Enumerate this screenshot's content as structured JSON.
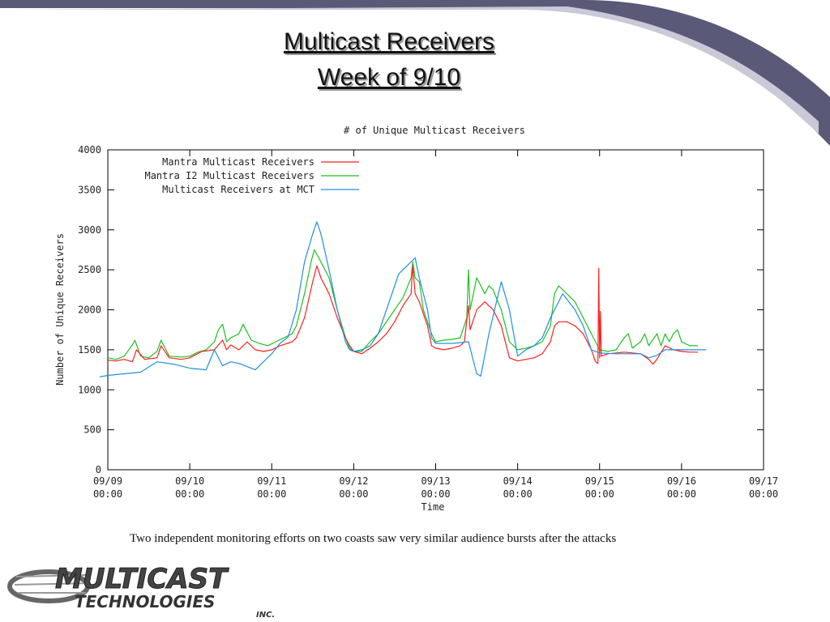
{
  "slide": {
    "title_line1": "Multicast Receivers",
    "title_line2": "Week of 9/10",
    "caption": "Two independent monitoring efforts on two coasts saw very similar audience bursts after the attacks"
  },
  "logo": {
    "word1": "MULTICAST",
    "word2": "TECHNOLOGIES",
    "word3": "INC."
  },
  "colors": {
    "series_red": "#ff2020",
    "series_green": "#20c020",
    "series_blue": "#2090e0",
    "deco_band": "#5a5a78"
  },
  "chart_data": {
    "type": "line",
    "title": "# of Unique Multicast Receivers",
    "xlabel": "Time",
    "ylabel": "Number of Unique Receivers",
    "ylim": [
      0,
      4000
    ],
    "yticks": [
      0,
      500,
      1000,
      1500,
      2000,
      2500,
      3000,
      3500,
      4000
    ],
    "xlim": [
      0,
      8
    ],
    "x_unit": "days since 09/09 00:00",
    "xticks": [
      {
        "x": 0,
        "line1": "09/09",
        "line2": "00:00"
      },
      {
        "x": 1,
        "line1": "09/10",
        "line2": "00:00"
      },
      {
        "x": 2,
        "line1": "09/11",
        "line2": "00:00"
      },
      {
        "x": 3,
        "line1": "09/12",
        "line2": "00:00"
      },
      {
        "x": 4,
        "line1": "09/13",
        "line2": "00:00"
      },
      {
        "x": 5,
        "line1": "09/14",
        "line2": "00:00"
      },
      {
        "x": 6,
        "line1": "09/15",
        "line2": "00:00"
      },
      {
        "x": 7,
        "line1": "09/16",
        "line2": "00:00"
      },
      {
        "x": 8,
        "line1": "09/17",
        "line2": "00:00"
      }
    ],
    "legend_position": "top-left",
    "grid": false,
    "series": [
      {
        "name": "Mantra Multicast Receivers",
        "color": "#ff2020",
        "points": [
          [
            0.0,
            1370
          ],
          [
            0.1,
            1360
          ],
          [
            0.2,
            1380
          ],
          [
            0.3,
            1350
          ],
          [
            0.35,
            1500
          ],
          [
            0.45,
            1380
          ],
          [
            0.6,
            1400
          ],
          [
            0.65,
            1550
          ],
          [
            0.75,
            1400
          ],
          [
            0.9,
            1380
          ],
          [
            1.0,
            1400
          ],
          [
            1.15,
            1480
          ],
          [
            1.3,
            1500
          ],
          [
            1.4,
            1620
          ],
          [
            1.45,
            1500
          ],
          [
            1.5,
            1560
          ],
          [
            1.6,
            1500
          ],
          [
            1.7,
            1600
          ],
          [
            1.8,
            1500
          ],
          [
            1.9,
            1480
          ],
          [
            2.0,
            1500
          ],
          [
            2.1,
            1550
          ],
          [
            2.25,
            1600
          ],
          [
            2.3,
            1650
          ],
          [
            2.4,
            1900
          ],
          [
            2.5,
            2350
          ],
          [
            2.55,
            2550
          ],
          [
            2.6,
            2400
          ],
          [
            2.7,
            2200
          ],
          [
            2.8,
            1900
          ],
          [
            2.9,
            1650
          ],
          [
            2.95,
            1550
          ],
          [
            3.0,
            1480
          ],
          [
            3.1,
            1450
          ],
          [
            3.2,
            1520
          ],
          [
            3.3,
            1600
          ],
          [
            3.4,
            1700
          ],
          [
            3.5,
            1850
          ],
          [
            3.6,
            2050
          ],
          [
            3.7,
            2200
          ],
          [
            3.72,
            2550
          ],
          [
            3.75,
            2200
          ],
          [
            3.8,
            2100
          ],
          [
            3.9,
            1800
          ],
          [
            3.95,
            1550
          ],
          [
            4.0,
            1520
          ],
          [
            4.1,
            1500
          ],
          [
            4.2,
            1520
          ],
          [
            4.3,
            1550
          ],
          [
            4.35,
            1600
          ],
          [
            4.4,
            2050
          ],
          [
            4.42,
            1750
          ],
          [
            4.5,
            2000
          ],
          [
            4.6,
            2100
          ],
          [
            4.7,
            2000
          ],
          [
            4.8,
            1800
          ],
          [
            4.9,
            1400
          ],
          [
            5.0,
            1360
          ],
          [
            5.1,
            1380
          ],
          [
            5.2,
            1400
          ],
          [
            5.3,
            1450
          ],
          [
            5.4,
            1600
          ],
          [
            5.45,
            1800
          ],
          [
            5.5,
            1850
          ],
          [
            5.6,
            1850
          ],
          [
            5.7,
            1800
          ],
          [
            5.8,
            1700
          ],
          [
            5.9,
            1500
          ],
          [
            5.95,
            1350
          ],
          [
            5.98,
            1330
          ],
          [
            5.99,
            2520
          ],
          [
            6.0,
            1400
          ],
          [
            6.01,
            1980
          ],
          [
            6.02,
            1420
          ],
          [
            6.1,
            1450
          ],
          [
            6.2,
            1460
          ],
          [
            6.3,
            1470
          ],
          [
            6.4,
            1460
          ],
          [
            6.5,
            1450
          ],
          [
            6.6,
            1380
          ],
          [
            6.65,
            1320
          ],
          [
            6.7,
            1380
          ],
          [
            6.8,
            1550
          ],
          [
            6.9,
            1500
          ],
          [
            7.0,
            1480
          ],
          [
            7.1,
            1470
          ],
          [
            7.2,
            1470
          ]
        ]
      },
      {
        "name": "Mantra I2 Multicast Receivers",
        "color": "#20c020",
        "points": [
          [
            0.0,
            1400
          ],
          [
            0.1,
            1380
          ],
          [
            0.2,
            1420
          ],
          [
            0.3,
            1560
          ],
          [
            0.33,
            1620
          ],
          [
            0.4,
            1420
          ],
          [
            0.5,
            1400
          ],
          [
            0.6,
            1480
          ],
          [
            0.65,
            1620
          ],
          [
            0.75,
            1420
          ],
          [
            0.9,
            1410
          ],
          [
            1.0,
            1420
          ],
          [
            1.1,
            1470
          ],
          [
            1.2,
            1500
          ],
          [
            1.3,
            1600
          ],
          [
            1.35,
            1750
          ],
          [
            1.4,
            1820
          ],
          [
            1.45,
            1600
          ],
          [
            1.5,
            1650
          ],
          [
            1.6,
            1700
          ],
          [
            1.65,
            1820
          ],
          [
            1.75,
            1620
          ],
          [
            1.85,
            1580
          ],
          [
            1.95,
            1550
          ],
          [
            2.05,
            1600
          ],
          [
            2.15,
            1650
          ],
          [
            2.25,
            1700
          ],
          [
            2.3,
            1800
          ],
          [
            2.4,
            2200
          ],
          [
            2.48,
            2600
          ],
          [
            2.52,
            2750
          ],
          [
            2.6,
            2600
          ],
          [
            2.7,
            2400
          ],
          [
            2.8,
            2000
          ],
          [
            2.9,
            1650
          ],
          [
            2.95,
            1520
          ],
          [
            3.0,
            1480
          ],
          [
            3.1,
            1480
          ],
          [
            3.2,
            1600
          ],
          [
            3.3,
            1700
          ],
          [
            3.4,
            1850
          ],
          [
            3.5,
            2000
          ],
          [
            3.6,
            2150
          ],
          [
            3.7,
            2400
          ],
          [
            3.72,
            2600
          ],
          [
            3.75,
            2400
          ],
          [
            3.8,
            2350
          ],
          [
            3.85,
            2000
          ],
          [
            3.95,
            1700
          ],
          [
            4.0,
            1600
          ],
          [
            4.1,
            1620
          ],
          [
            4.2,
            1630
          ],
          [
            4.3,
            1650
          ],
          [
            4.38,
            1900
          ],
          [
            4.4,
            2500
          ],
          [
            4.42,
            2000
          ],
          [
            4.5,
            2400
          ],
          [
            4.6,
            2200
          ],
          [
            4.65,
            2300
          ],
          [
            4.7,
            2250
          ],
          [
            4.8,
            2000
          ],
          [
            4.9,
            1600
          ],
          [
            5.0,
            1500
          ],
          [
            5.1,
            1520
          ],
          [
            5.2,
            1550
          ],
          [
            5.3,
            1600
          ],
          [
            5.4,
            1800
          ],
          [
            5.45,
            2200
          ],
          [
            5.5,
            2300
          ],
          [
            5.6,
            2200
          ],
          [
            5.7,
            2100
          ],
          [
            5.8,
            1900
          ],
          [
            5.9,
            1700
          ],
          [
            6.0,
            1500
          ],
          [
            6.1,
            1480
          ],
          [
            6.2,
            1500
          ],
          [
            6.3,
            1650
          ],
          [
            6.35,
            1700
          ],
          [
            6.4,
            1520
          ],
          [
            6.5,
            1600
          ],
          [
            6.55,
            1700
          ],
          [
            6.6,
            1550
          ],
          [
            6.7,
            1700
          ],
          [
            6.75,
            1550
          ],
          [
            6.8,
            1700
          ],
          [
            6.85,
            1600
          ],
          [
            6.9,
            1700
          ],
          [
            6.95,
            1750
          ],
          [
            7.0,
            1600
          ],
          [
            7.1,
            1550
          ],
          [
            7.2,
            1550
          ]
        ]
      },
      {
        "name": "Multicast Receivers at MCT",
        "color": "#2090e0",
        "points": [
          [
            -0.1,
            1160
          ],
          [
            0.0,
            1180
          ],
          [
            0.2,
            1200
          ],
          [
            0.4,
            1220
          ],
          [
            0.6,
            1350
          ],
          [
            0.8,
            1320
          ],
          [
            1.0,
            1270
          ],
          [
            1.2,
            1250
          ],
          [
            1.3,
            1500
          ],
          [
            1.4,
            1300
          ],
          [
            1.5,
            1350
          ],
          [
            1.6,
            1330
          ],
          [
            1.8,
            1250
          ],
          [
            1.9,
            1350
          ],
          [
            2.0,
            1450
          ],
          [
            2.1,
            1580
          ],
          [
            2.2,
            1660
          ],
          [
            2.3,
            2000
          ],
          [
            2.4,
            2600
          ],
          [
            2.5,
            2950
          ],
          [
            2.55,
            3100
          ],
          [
            2.6,
            2950
          ],
          [
            2.7,
            2500
          ],
          [
            2.8,
            2000
          ],
          [
            2.9,
            1600
          ],
          [
            2.95,
            1500
          ],
          [
            3.0,
            1480
          ],
          [
            3.1,
            1500
          ],
          [
            3.2,
            1550
          ],
          [
            3.3,
            1700
          ],
          [
            3.4,
            2000
          ],
          [
            3.55,
            2450
          ],
          [
            3.65,
            2550
          ],
          [
            3.75,
            2650
          ],
          [
            3.8,
            2400
          ],
          [
            3.9,
            2000
          ],
          [
            3.95,
            1650
          ],
          [
            4.0,
            1580
          ],
          [
            4.2,
            1580
          ],
          [
            4.4,
            1600
          ],
          [
            4.5,
            1200
          ],
          [
            4.55,
            1170
          ],
          [
            4.65,
            1700
          ],
          [
            4.8,
            2350
          ],
          [
            4.9,
            2000
          ],
          [
            5.0,
            1420
          ],
          [
            5.1,
            1500
          ],
          [
            5.2,
            1550
          ],
          [
            5.3,
            1650
          ],
          [
            5.4,
            1900
          ],
          [
            5.55,
            2200
          ],
          [
            5.7,
            2000
          ],
          [
            5.8,
            1800
          ],
          [
            5.9,
            1500
          ],
          [
            6.0,
            1460
          ],
          [
            6.2,
            1450
          ],
          [
            6.4,
            1450
          ],
          [
            6.5,
            1450
          ],
          [
            6.6,
            1400
          ],
          [
            6.7,
            1430
          ],
          [
            6.8,
            1500
          ],
          [
            7.0,
            1500
          ],
          [
            7.2,
            1500
          ],
          [
            7.3,
            1500
          ]
        ]
      }
    ]
  }
}
